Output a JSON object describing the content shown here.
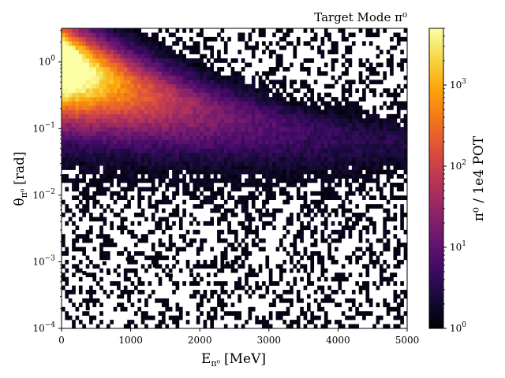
{
  "chart_data": {
    "type": "heatmap",
    "title": "Target Mode π⁰",
    "xlabel": {
      "main": "E",
      "sub": "π⁰",
      "units": "[MeV]"
    },
    "ylabel": {
      "main": "θ",
      "sub": "π⁰",
      "units": "[rad]"
    },
    "colorbar_label": "π⁰ / 1e4 POT",
    "xlim": [
      0,
      5000
    ],
    "ylim": [
      0.0001,
      3.2
    ],
    "yscale": "log",
    "color_scale": "log",
    "colormap": "inferno",
    "clim": [
      1,
      5000
    ],
    "x_ticks": [
      {
        "value": 0,
        "label": "0"
      },
      {
        "value": 1000,
        "label": "1000"
      },
      {
        "value": 2000,
        "label": "2000"
      },
      {
        "value": 3000,
        "label": "3000"
      },
      {
        "value": 4000,
        "label": "4000"
      },
      {
        "value": 5000,
        "label": "5000"
      }
    ],
    "y_ticks": [
      {
        "value": 0.0001,
        "base": "10",
        "exp": "−4"
      },
      {
        "value": 0.001,
        "base": "10",
        "exp": "−3"
      },
      {
        "value": 0.01,
        "base": "10",
        "exp": "−2"
      },
      {
        "value": 0.1,
        "base": "10",
        "exp": "−1"
      },
      {
        "value": 1,
        "base": "10",
        "exp": "0"
      }
    ],
    "colorbar_ticks": [
      {
        "value": 1,
        "base": "10",
        "exp": "0"
      },
      {
        "value": 10,
        "base": "10",
        "exp": "1"
      },
      {
        "value": 100,
        "base": "10",
        "exp": "2"
      },
      {
        "value": 1000,
        "base": "10",
        "exp": "3"
      }
    ],
    "bins": {
      "x_count": 100,
      "y_count": 70
    },
    "distribution": {
      "description_points": [
        {
          "E": 150,
          "theta_peak": 0.9,
          "peak_count": 4500
        },
        {
          "E": 1000,
          "theta_peak": 0.3,
          "peak_count": 900
        },
        {
          "E": 2000,
          "theta_peak": 0.2,
          "peak_count": 250
        },
        {
          "E": 3000,
          "theta_peak": 0.15,
          "peak_count": 60
        },
        {
          "E": 4000,
          "theta_peak": 0.1,
          "peak_count": 15
        },
        {
          "E": 5000,
          "theta_peak": 0.07,
          "peak_count": 5
        }
      ]
    },
    "outliers": [
      {
        "E": 380,
        "theta": 0.0002
      },
      {
        "E": 830,
        "theta": 0.0003
      },
      {
        "E": 330,
        "theta": 0.00068
      },
      {
        "E": 470,
        "theta": 0.00062
      },
      {
        "E": 1580,
        "theta": 0.00062
      },
      {
        "E": 1880,
        "theta": 0.00063
      },
      {
        "E": 680,
        "theta": 0.00068
      },
      {
        "E": 1350,
        "theta": 0.00088
      },
      {
        "E": 2400,
        "theta": 0.00095
      },
      {
        "E": 620,
        "theta": 0.00095
      },
      {
        "E": 960,
        "theta": 0.0011
      }
    ]
  }
}
